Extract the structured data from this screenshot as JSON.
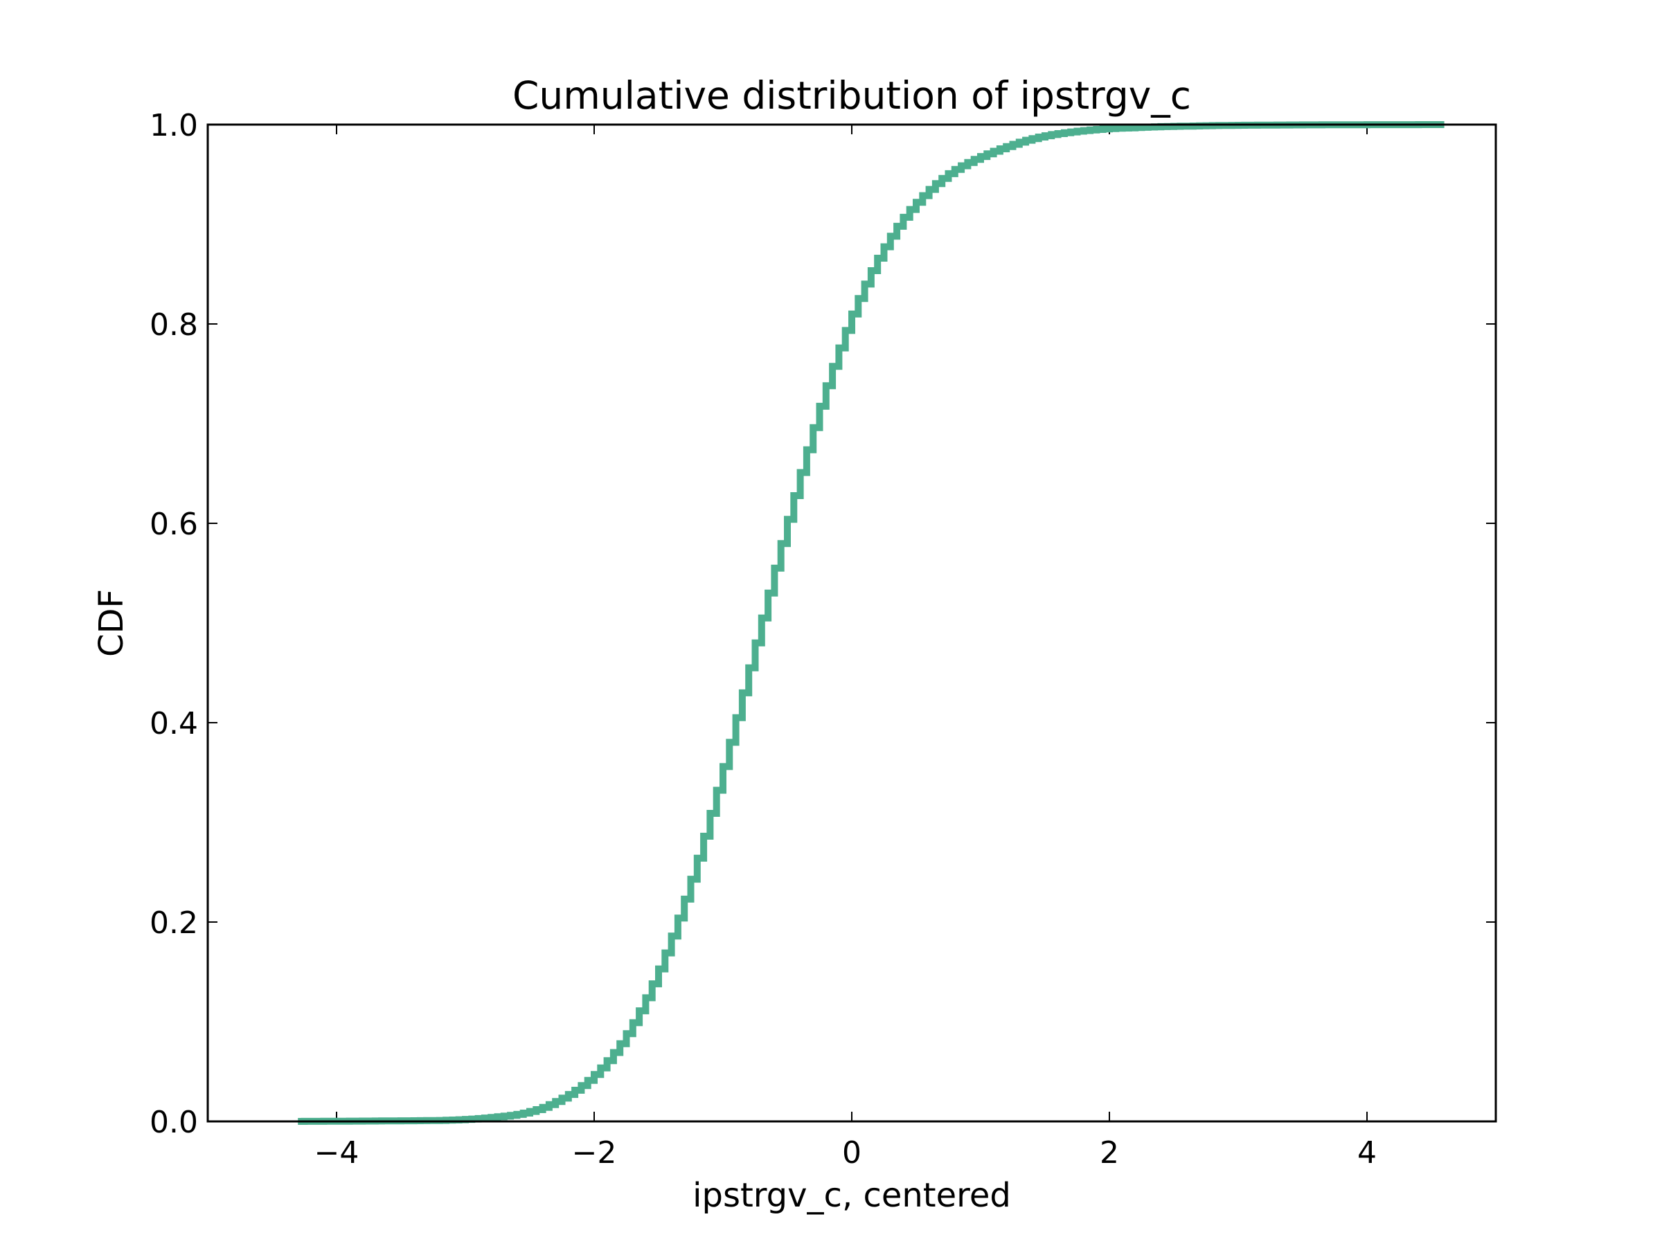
{
  "chart_data": {
    "type": "line",
    "title": "Cumulative distribution of ipstrgv_c",
    "xlabel": "ipstrgv_c, centered",
    "ylabel": "CDF",
    "xlim": [
      -5,
      5
    ],
    "ylim": [
      0,
      1.0
    ],
    "x_ticks": [
      -4,
      -2,
      0,
      2,
      4
    ],
    "x_tick_labels": [
      "−4",
      "−2",
      "0",
      "2",
      "4"
    ],
    "y_ticks": [
      0.0,
      0.2,
      0.4,
      0.6,
      0.8,
      1.0
    ],
    "y_tick_labels": [
      "0.0",
      "0.2",
      "0.4",
      "0.6",
      "0.8",
      "1.0"
    ],
    "grid": false,
    "step": true,
    "series": [
      {
        "color": "#4daf8f",
        "x": [
          -4.3,
          -3.6,
          -3.2,
          -3.0,
          -2.8,
          -2.6,
          -2.5,
          -2.4,
          -2.3,
          -2.2,
          -2.1,
          -2.0,
          -1.9,
          -1.8,
          -1.7,
          -1.6,
          -1.5,
          -1.4,
          -1.3,
          -1.2,
          -1.1,
          -1.0,
          -0.9,
          -0.8,
          -0.7,
          -0.6,
          -0.5,
          -0.4,
          -0.3,
          -0.2,
          -0.1,
          0.0,
          0.1,
          0.2,
          0.3,
          0.4,
          0.5,
          0.6,
          0.7,
          0.8,
          0.9,
          1.0,
          1.2,
          1.4,
          1.6,
          1.8,
          2.0,
          2.2,
          2.4,
          2.6,
          2.8,
          3.0,
          3.5,
          4.0,
          4.6
        ],
        "y": [
          0.0,
          0.0005,
          0.001,
          0.002,
          0.004,
          0.007,
          0.01,
          0.014,
          0.02,
          0.027,
          0.036,
          0.047,
          0.061,
          0.078,
          0.099,
          0.124,
          0.153,
          0.186,
          0.223,
          0.264,
          0.309,
          0.356,
          0.405,
          0.455,
          0.505,
          0.555,
          0.604,
          0.651,
          0.696,
          0.738,
          0.776,
          0.81,
          0.84,
          0.866,
          0.888,
          0.907,
          0.922,
          0.935,
          0.946,
          0.955,
          0.962,
          0.968,
          0.978,
          0.986,
          0.991,
          0.994,
          0.996,
          0.997,
          0.998,
          0.9985,
          0.999,
          0.9993,
          0.9997,
          0.9999,
          1.0
        ]
      }
    ]
  }
}
